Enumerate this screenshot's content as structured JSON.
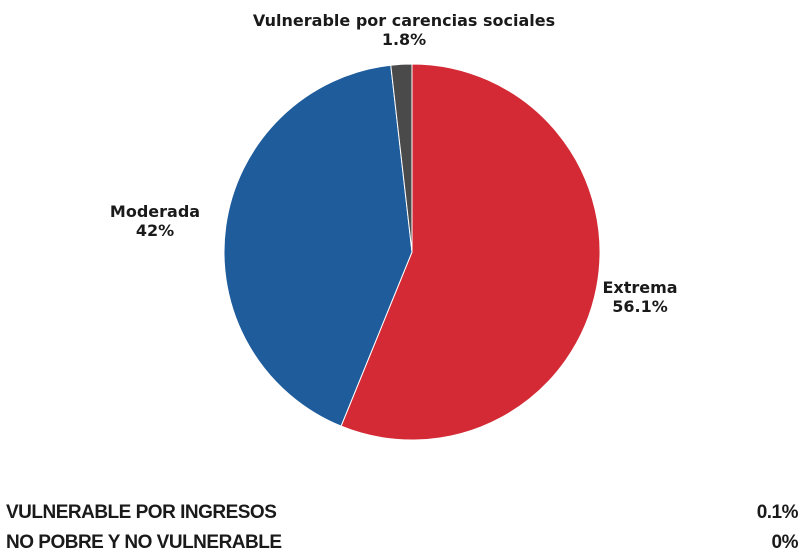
{
  "chart_data": {
    "type": "pie",
    "slices": [
      {
        "label": "Extrema",
        "value": 56.1,
        "display": "56.1%",
        "color": "#d42a35"
      },
      {
        "label": "Moderada",
        "value": 42,
        "display": "42%",
        "color": "#1e5c9c"
      },
      {
        "label": "Vulnerable por carencias sociales",
        "value": 1.8,
        "display": "1.8%",
        "color": "#4a4a4a"
      }
    ]
  },
  "stats": [
    {
      "label": "VULNERABLE POR INGRESOS",
      "value": "0.1%"
    },
    {
      "label": "NO POBRE Y NO VULNERABLE",
      "value": "0%"
    }
  ]
}
